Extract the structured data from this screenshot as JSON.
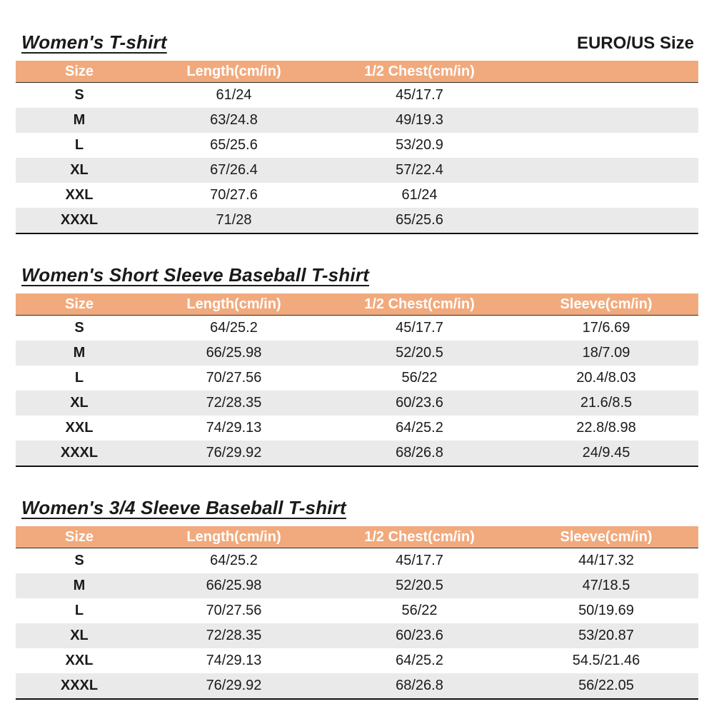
{
  "page": {
    "euro_us_label": "EURO/US Size"
  },
  "colors": {
    "header_bg": "#F1AA7D",
    "alt_row_bg": "#EAEAEA",
    "header_text": "#FFFFFF",
    "text": "#1A1A1A"
  },
  "tables": [
    {
      "title": "Women's T-shirt",
      "columns": [
        "Size",
        "Length(cm/in)",
        "1/2 Chest(cm/in)",
        ""
      ],
      "rows": [
        [
          "S",
          "61/24",
          "45/17.7",
          ""
        ],
        [
          "M",
          "63/24.8",
          "49/19.3",
          ""
        ],
        [
          "L",
          "65/25.6",
          "53/20.9",
          ""
        ],
        [
          "XL",
          "67/26.4",
          "57/22.4",
          ""
        ],
        [
          "XXL",
          "70/27.6",
          "61/24",
          ""
        ],
        [
          "XXXL",
          "71/28",
          "65/25.6",
          ""
        ]
      ]
    },
    {
      "title": "Women's Short Sleeve Baseball T-shirt",
      "columns": [
        "Size",
        "Length(cm/in)",
        "1/2 Chest(cm/in)",
        "Sleeve(cm/in)"
      ],
      "rows": [
        [
          "S",
          "64/25.2",
          "45/17.7",
          "17/6.69"
        ],
        [
          "M",
          "66/25.98",
          "52/20.5",
          "18/7.09"
        ],
        [
          "L",
          "70/27.56",
          "56/22",
          "20.4/8.03"
        ],
        [
          "XL",
          "72/28.35",
          "60/23.6",
          "21.6/8.5"
        ],
        [
          "XXL",
          "74/29.13",
          "64/25.2",
          "22.8/8.98"
        ],
        [
          "XXXL",
          "76/29.92",
          "68/26.8",
          "24/9.45"
        ]
      ]
    },
    {
      "title": "Women's 3/4 Sleeve Baseball T-shirt",
      "columns": [
        "Size",
        "Length(cm/in)",
        "1/2 Chest(cm/in)",
        "Sleeve(cm/in)"
      ],
      "rows": [
        [
          "S",
          "64/25.2",
          "45/17.7",
          "44/17.32"
        ],
        [
          "M",
          "66/25.98",
          "52/20.5",
          "47/18.5"
        ],
        [
          "L",
          "70/27.56",
          "56/22",
          "50/19.69"
        ],
        [
          "XL",
          "72/28.35",
          "60/23.6",
          "53/20.87"
        ],
        [
          "XXL",
          "74/29.13",
          "64/25.2",
          "54.5/21.46"
        ],
        [
          "XXXL",
          "76/29.92",
          "68/26.8",
          "56/22.05"
        ]
      ]
    }
  ]
}
